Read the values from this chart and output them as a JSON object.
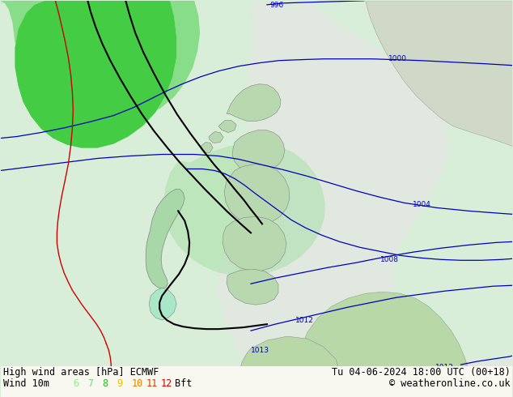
{
  "title_left": "High wind areas [hPa] ECMWF",
  "title_right": "Tu 04-06-2024 18:00 UTC (00+18)",
  "subtitle_left": "Wind 10m",
  "copyright": "© weatheronline.co.uk",
  "bft_nums": [
    "6",
    "7",
    "8",
    "9",
    "10",
    "11",
    "12"
  ],
  "bft_colors": [
    "#90ee90",
    "#78d878",
    "#28b828",
    "#e8c000",
    "#e88000",
    "#d04000",
    "#cc0000"
  ],
  "bg_color": "#d8eed8",
  "land_light": "#e0f0e0",
  "land_gray": "#d8d8d0",
  "sea_light": "#e8f4e8",
  "green_dark": "#44cc44",
  "green_mid": "#88dd88",
  "green_light": "#b8e8b8",
  "font_size": 8.5
}
